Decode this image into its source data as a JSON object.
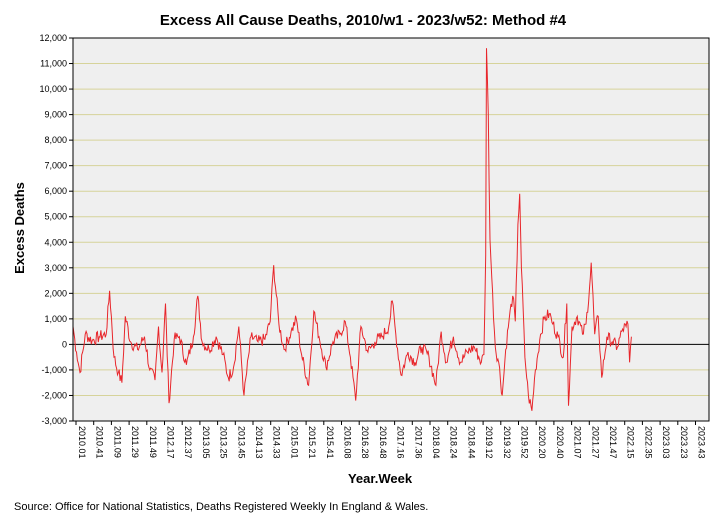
{
  "chart_data": {
    "type": "line",
    "title": "Excess All Cause Deaths, 2010/w1 - 2023/w52: Method #4",
    "xlabel": "Year.Week",
    "ylabel": "Excess Deaths",
    "ylim": [
      -3000,
      12000
    ],
    "yticks": [
      12000,
      11000,
      10000,
      9000,
      8000,
      7000,
      6000,
      5000,
      4000,
      3000,
      2000,
      1000,
      0,
      -1000,
      -2000,
      -3000
    ],
    "ytick_labels": [
      "12,000",
      "11,000",
      "10,000",
      "9,000",
      "8,000",
      "7,000",
      "6,000",
      "5,000",
      "4,000",
      "3,000",
      "2,000",
      "1,000",
      "0",
      "-1,000",
      "-2,000",
      "-3,000"
    ],
    "xtick_labels": [
      "2010.01",
      "2010.41",
      "2011.09",
      "2011.29",
      "2011.49",
      "2012.17",
      "2012.37",
      "2013.05",
      "2013.25",
      "2013.45",
      "2014.13",
      "2014.33",
      "2015.01",
      "2015.21",
      "2015.41",
      "2016.08",
      "2016.28",
      "2016.48",
      "2017.16",
      "2017.36",
      "2018.04",
      "2018.24",
      "2018.44",
      "2019.12",
      "2019.32",
      "2019.52",
      "2020.20",
      "2020.40",
      "2021.07",
      "2021.27",
      "2021.47",
      "2022.15",
      "2022.35",
      "2023.03",
      "2023.23",
      "2023.43"
    ],
    "x_range_weeks": [
      0,
      729
    ],
    "line_color": "#e8262b",
    "keypoints": [
      [
        0,
        700
      ],
      [
        4,
        -300
      ],
      [
        8,
        -1100
      ],
      [
        14,
        400
      ],
      [
        22,
        150
      ],
      [
        30,
        300
      ],
      [
        38,
        400
      ],
      [
        42,
        2100
      ],
      [
        47,
        -500
      ],
      [
        52,
        -1100
      ],
      [
        56,
        -1500
      ],
      [
        60,
        1100
      ],
      [
        66,
        100
      ],
      [
        74,
        -200
      ],
      [
        82,
        300
      ],
      [
        88,
        -1000
      ],
      [
        94,
        -1400
      ],
      [
        98,
        700
      ],
      [
        102,
        -1100
      ],
      [
        106,
        1600
      ],
      [
        110,
        -2300
      ],
      [
        116,
        200
      ],
      [
        122,
        300
      ],
      [
        130,
        -800
      ],
      [
        138,
        300
      ],
      [
        143,
        1900
      ],
      [
        148,
        100
      ],
      [
        156,
        -200
      ],
      [
        164,
        300
      ],
      [
        172,
        -400
      ],
      [
        178,
        -1300
      ],
      [
        184,
        -900
      ],
      [
        190,
        700
      ],
      [
        196,
        -2000
      ],
      [
        204,
        300
      ],
      [
        212,
        100
      ],
      [
        220,
        200
      ],
      [
        226,
        900
      ],
      [
        230,
        3100
      ],
      [
        236,
        800
      ],
      [
        242,
        -200
      ],
      [
        250,
        500
      ],
      [
        256,
        1000
      ],
      [
        262,
        -400
      ],
      [
        270,
        -1600
      ],
      [
        276,
        1300
      ],
      [
        282,
        300
      ],
      [
        290,
        -900
      ],
      [
        298,
        100
      ],
      [
        306,
        400
      ],
      [
        312,
        900
      ],
      [
        318,
        -500
      ],
      [
        324,
        -2200
      ],
      [
        330,
        700
      ],
      [
        338,
        -300
      ],
      [
        346,
        100
      ],
      [
        354,
        300
      ],
      [
        362,
        700
      ],
      [
        366,
        1700
      ],
      [
        370,
        400
      ],
      [
        376,
        -1200
      ],
      [
        384,
        -300
      ],
      [
        392,
        -700
      ],
      [
        400,
        -100
      ],
      [
        408,
        -500
      ],
      [
        416,
        -1600
      ],
      [
        422,
        500
      ],
      [
        428,
        -700
      ],
      [
        436,
        300
      ],
      [
        444,
        -700
      ],
      [
        452,
        -300
      ],
      [
        460,
        -100
      ],
      [
        468,
        -700
      ],
      [
        471,
        -400
      ],
      [
        473,
        3500
      ],
      [
        474,
        11600
      ],
      [
        476,
        9000
      ],
      [
        478,
        4100
      ],
      [
        480,
        2600
      ],
      [
        484,
        -100
      ],
      [
        488,
        -700
      ],
      [
        492,
        -2000
      ],
      [
        496,
        -200
      ],
      [
        500,
        1000
      ],
      [
        504,
        1900
      ],
      [
        507,
        900
      ],
      [
        510,
        4700
      ],
      [
        512,
        5900
      ],
      [
        514,
        3000
      ],
      [
        518,
        -500
      ],
      [
        522,
        -2000
      ],
      [
        526,
        -2600
      ],
      [
        530,
        -1000
      ],
      [
        536,
        400
      ],
      [
        540,
        1000
      ],
      [
        546,
        1200
      ],
      [
        550,
        800
      ],
      [
        556,
        300
      ],
      [
        562,
        -500
      ],
      [
        566,
        1600
      ],
      [
        568,
        -2400
      ],
      [
        572,
        700
      ],
      [
        578,
        1100
      ],
      [
        584,
        400
      ],
      [
        588,
        800
      ],
      [
        592,
        2200
      ],
      [
        594,
        3200
      ],
      [
        598,
        400
      ],
      [
        602,
        1100
      ],
      [
        606,
        -1300
      ],
      [
        612,
        300
      ],
      [
        618,
        100
      ],
      [
        624,
        -100
      ],
      [
        630,
        600
      ],
      [
        634,
        700
      ],
      [
        636,
        800
      ],
      [
        638,
        -700
      ],
      [
        640,
        300
      ]
    ]
  },
  "source": "Source: Office for National Statistics, Deaths Registered Weekly In England & Wales."
}
